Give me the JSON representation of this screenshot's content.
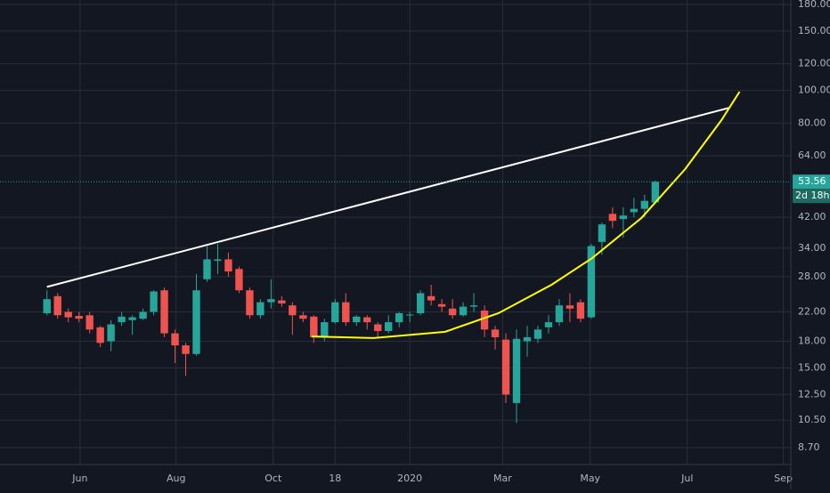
{
  "chart_data": {
    "type": "candlestick",
    "log_scale": true,
    "grid": true,
    "background": "#131722",
    "up_color": "#26a69a",
    "down_color": "#ef5350",
    "categories": [
      null,
      null,
      null,
      null,
      null,
      null,
      null,
      null,
      null,
      null,
      null,
      null,
      null,
      null,
      null,
      null,
      null,
      null,
      null,
      null,
      null,
      null,
      null,
      null,
      null,
      null,
      null,
      null,
      null,
      null,
      null,
      null,
      null,
      null,
      null,
      null,
      null,
      null,
      null,
      null,
      null,
      null,
      null,
      null,
      null,
      null,
      null,
      null,
      null,
      null,
      null,
      null,
      null,
      null,
      null,
      null,
      null,
      null
    ],
    "open": [
      21.8,
      24.5,
      22,
      21.4,
      21.5,
      19.8,
      18,
      20.5,
      20.8,
      21,
      22,
      25.5,
      19,
      17.5,
      16.5,
      27.5,
      31.2,
      31.5,
      29.5,
      25.5,
      21.5,
      23.5,
      23.8,
      23,
      21.5,
      21.3,
      18.5,
      20.5,
      23.5,
      20.5,
      21.2,
      20.2,
      19.3,
      20.5,
      21.5,
      21.8,
      24.5,
      23.2,
      22.5,
      21.5,
      22.8,
      22.2,
      19.5,
      18.2,
      11.8,
      18,
      18.3,
      19.8,
      20.5,
      23,
      23.5,
      21.2,
      35.5,
      43,
      41.5,
      43.5,
      44.5,
      46.5
    ],
    "high": [
      25.5,
      25,
      22.5,
      22,
      22,
      20,
      20.8,
      22,
      21.5,
      22.5,
      25.5,
      26,
      19.5,
      17.8,
      28.5,
      34.5,
      35,
      33,
      30,
      26,
      24,
      27.5,
      24.5,
      23.5,
      22,
      21.5,
      21,
      24,
      25,
      21.5,
      21.5,
      20.5,
      21.5,
      22,
      22,
      25.5,
      26.5,
      24,
      24,
      23.5,
      25,
      23,
      20,
      19,
      19.5,
      20,
      20,
      21.5,
      24,
      25,
      24,
      35,
      40.5,
      45,
      45,
      48,
      49,
      54
    ],
    "low": [
      21.5,
      21,
      20.5,
      20.5,
      19,
      17.3,
      16.8,
      20,
      18.8,
      20.8,
      21.5,
      18.5,
      15.5,
      14.2,
      16.3,
      27,
      28.5,
      28,
      25,
      21,
      21,
      22.5,
      22.8,
      18.8,
      20.5,
      17.8,
      18,
      20.3,
      20,
      20,
      19.5,
      18.5,
      19,
      19.8,
      20.5,
      21.5,
      23,
      22,
      21,
      21.3,
      22,
      18.5,
      17,
      11.8,
      10.3,
      16.2,
      17.8,
      19,
      20,
      20.5,
      20.5,
      21,
      32.5,
      39,
      36.5,
      42,
      42,
      46
    ],
    "close": [
      24,
      21.5,
      21.2,
      21,
      19.5,
      17.8,
      20.2,
      21.3,
      21.2,
      22,
      25.3,
      19,
      17.5,
      16.5,
      25.5,
      31.5,
      31.5,
      29,
      25.5,
      21.5,
      23.5,
      24,
      23.3,
      21.5,
      21,
      18.5,
      20.5,
      23.5,
      20.5,
      21.3,
      20.5,
      19.3,
      20.5,
      21.8,
      21.6,
      25,
      23.8,
      22.8,
      21.5,
      22.8,
      23,
      19.5,
      18.5,
      12.5,
      18.3,
      18.5,
      19.5,
      20.5,
      23,
      22.5,
      21,
      34.5,
      40,
      41,
      42.5,
      44.5,
      47,
      53.56
    ],
    "xlim": [
      -4.4,
      69.7
    ],
    "xticks": [
      {
        "value": 3.1,
        "label": "Jun"
      },
      {
        "value": 12.1,
        "label": "Aug"
      },
      {
        "value": 21.2,
        "label": "Oct"
      },
      {
        "value": 27,
        "label": "18"
      },
      {
        "value": 34,
        "label": "2020"
      },
      {
        "value": 42.7,
        "label": "Mar"
      },
      {
        "value": 50.9,
        "label": "May"
      },
      {
        "value": 60,
        "label": "Jul"
      },
      {
        "value": 69,
        "label": "Sep"
      }
    ],
    "ylim": [
      7.75,
      185.5
    ],
    "yticks": [
      {
        "value": 8.7,
        "label": "8.70"
      },
      {
        "value": 10.5,
        "label": "10.50"
      },
      {
        "value": 12.5,
        "label": "12.50"
      },
      {
        "value": 15,
        "label": "15.00"
      },
      {
        "value": 18,
        "label": "18.00"
      },
      {
        "value": 22,
        "label": "22.00"
      },
      {
        "value": 28,
        "label": "28.00"
      },
      {
        "value": 34,
        "label": "34.00"
      },
      {
        "value": 42,
        "label": "42.00"
      },
      {
        "value": 64,
        "label": "64.00"
      },
      {
        "value": 80,
        "label": "80.00"
      },
      {
        "value": 100,
        "label": "100.00"
      },
      {
        "value": 120,
        "label": "120.00"
      },
      {
        "value": 150,
        "label": "150.00"
      },
      {
        "value": 180,
        "label": "180.00"
      }
    ],
    "last_price": 53.56,
    "countdown": "2d 18h",
    "drawings": [
      {
        "color": "#ffffff",
        "x": [
          0,
          64
        ],
        "y": [
          26.1,
          88.9
        ]
      },
      {
        "color": "#ffff00",
        "x": [
          24.8,
          30.6,
          37.3,
          42.3,
          47.3,
          51.1,
          55.7,
          59.8,
          63.2,
          64.9
        ],
        "y": [
          18.6,
          18.4,
          19.2,
          21.8,
          26.5,
          31.8,
          41.8,
          58.4,
          81.6,
          99.1
        ]
      }
    ]
  }
}
